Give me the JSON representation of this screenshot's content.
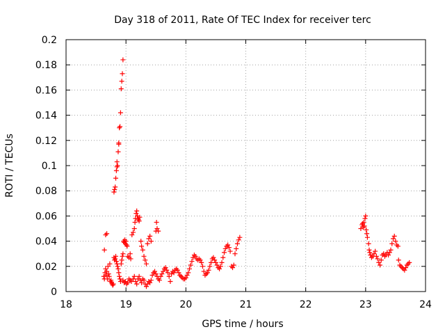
{
  "chart_data": {
    "type": "scatter",
    "title": "Day 318 of 2011, Rate Of TEC Index for receiver terc",
    "xlabel": "GPS time / hours",
    "ylabel": "ROTI / TECUs",
    "xlim": [
      18,
      24
    ],
    "ylim": [
      0,
      0.2
    ],
    "xticks": [
      18,
      19,
      20,
      21,
      22,
      23,
      24
    ],
    "xtick_labels": [
      "18",
      "19",
      "20",
      "21",
      "22",
      "23",
      "24"
    ],
    "yticks": [
      0,
      0.02,
      0.04,
      0.06,
      0.08,
      0.1,
      0.12,
      0.14,
      0.16,
      0.18,
      0.2
    ],
    "ytick_labels": [
      "0",
      "0.02",
      "0.04",
      "0.06",
      "0.08",
      "0.1",
      "0.12",
      "0.14",
      "0.16",
      "0.18",
      "0.2"
    ],
    "grid": true,
    "marker": "plus",
    "series": [
      {
        "name": "ROTI",
        "color": "#ff0000",
        "points": [
          [
            18.64,
            0.033
          ],
          [
            18.66,
            0.045
          ],
          [
            18.68,
            0.046
          ],
          [
            18.8,
            0.079
          ],
          [
            18.81,
            0.081
          ],
          [
            18.82,
            0.083
          ],
          [
            18.83,
            0.09
          ],
          [
            18.84,
            0.096
          ],
          [
            18.85,
            0.099
          ],
          [
            18.85,
            0.103
          ],
          [
            18.86,
            0.1
          ],
          [
            18.87,
            0.111
          ],
          [
            18.88,
            0.118
          ],
          [
            18.88,
            0.117
          ],
          [
            18.89,
            0.13
          ],
          [
            18.9,
            0.131
          ],
          [
            18.91,
            0.142
          ],
          [
            18.92,
            0.161
          ],
          [
            18.93,
            0.167
          ],
          [
            18.94,
            0.173
          ],
          [
            18.95,
            0.184
          ],
          [
            18.63,
            0.012
          ],
          [
            18.64,
            0.01
          ],
          [
            18.65,
            0.015
          ],
          [
            18.66,
            0.018
          ],
          [
            18.67,
            0.013
          ],
          [
            18.68,
            0.016
          ],
          [
            18.69,
            0.01
          ],
          [
            18.7,
            0.02
          ],
          [
            18.71,
            0.014
          ],
          [
            18.72,
            0.012
          ],
          [
            18.73,
            0.022
          ],
          [
            18.74,
            0.008
          ],
          [
            18.75,
            0.009
          ],
          [
            18.76,
            0.007
          ],
          [
            18.77,
            0.006
          ],
          [
            18.78,
            0.005
          ],
          [
            18.79,
            0.006
          ],
          [
            18.8,
            0.027
          ],
          [
            18.81,
            0.025
          ],
          [
            18.82,
            0.026
          ],
          [
            18.83,
            0.028
          ],
          [
            18.84,
            0.024
          ],
          [
            18.85,
            0.022
          ],
          [
            18.86,
            0.02
          ],
          [
            18.87,
            0.018
          ],
          [
            18.88,
            0.015
          ],
          [
            18.89,
            0.012
          ],
          [
            18.9,
            0.01
          ],
          [
            18.91,
            0.008
          ],
          [
            18.92,
            0.022
          ],
          [
            18.93,
            0.025
          ],
          [
            18.94,
            0.028
          ],
          [
            18.95,
            0.03
          ],
          [
            18.96,
            0.04
          ],
          [
            18.97,
            0.039
          ],
          [
            18.98,
            0.041
          ],
          [
            18.99,
            0.038
          ],
          [
            19.0,
            0.04
          ],
          [
            19.01,
            0.037
          ],
          [
            19.02,
            0.036
          ],
          [
            18.95,
            0.009
          ],
          [
            18.97,
            0.007
          ],
          [
            18.99,
            0.008
          ],
          [
            19.01,
            0.006
          ],
          [
            19.03,
            0.007
          ],
          [
            19.05,
            0.01
          ],
          [
            19.07,
            0.009
          ],
          [
            19.09,
            0.008
          ],
          [
            19.03,
            0.028
          ],
          [
            19.05,
            0.027
          ],
          [
            19.07,
            0.03
          ],
          [
            19.08,
            0.026
          ],
          [
            19.1,
            0.045
          ],
          [
            19.12,
            0.047
          ],
          [
            19.14,
            0.05
          ],
          [
            19.15,
            0.055
          ],
          [
            19.16,
            0.058
          ],
          [
            19.17,
            0.062
          ],
          [
            19.18,
            0.064
          ],
          [
            19.19,
            0.06
          ],
          [
            19.2,
            0.058
          ],
          [
            19.21,
            0.057
          ],
          [
            19.22,
            0.056
          ],
          [
            19.23,
            0.059
          ],
          [
            19.25,
            0.04
          ],
          [
            19.26,
            0.036
          ],
          [
            19.28,
            0.033
          ],
          [
            19.3,
            0.028
          ],
          [
            19.32,
            0.025
          ],
          [
            19.34,
            0.022
          ],
          [
            19.36,
            0.038
          ],
          [
            19.38,
            0.042
          ],
          [
            19.4,
            0.044
          ],
          [
            19.42,
            0.04
          ],
          [
            19.5,
            0.048
          ],
          [
            19.51,
            0.055
          ],
          [
            19.52,
            0.05
          ],
          [
            19.54,
            0.048
          ],
          [
            19.12,
            0.01
          ],
          [
            19.14,
            0.012
          ],
          [
            19.16,
            0.008
          ],
          [
            19.18,
            0.006
          ],
          [
            19.2,
            0.01
          ],
          [
            19.22,
            0.012
          ],
          [
            19.24,
            0.009
          ],
          [
            19.26,
            0.007
          ],
          [
            19.28,
            0.01
          ],
          [
            19.3,
            0.009
          ],
          [
            19.32,
            0.006
          ],
          [
            19.34,
            0.004
          ],
          [
            19.36,
            0.006
          ],
          [
            19.38,
            0.008
          ],
          [
            19.4,
            0.007
          ],
          [
            19.42,
            0.009
          ],
          [
            19.44,
            0.013
          ],
          [
            19.46,
            0.015
          ],
          [
            19.48,
            0.016
          ],
          [
            19.5,
            0.014
          ],
          [
            19.52,
            0.012
          ],
          [
            19.54,
            0.01
          ],
          [
            19.56,
            0.009
          ],
          [
            19.58,
            0.012
          ],
          [
            19.6,
            0.014
          ],
          [
            19.62,
            0.016
          ],
          [
            19.64,
            0.018
          ],
          [
            19.66,
            0.019
          ],
          [
            19.68,
            0.017
          ],
          [
            19.7,
            0.015
          ],
          [
            19.72,
            0.012
          ],
          [
            19.74,
            0.008
          ],
          [
            19.76,
            0.014
          ],
          [
            19.78,
            0.016
          ],
          [
            19.8,
            0.015
          ],
          [
            19.82,
            0.017
          ],
          [
            19.84,
            0.018
          ],
          [
            19.86,
            0.017
          ],
          [
            19.88,
            0.015
          ],
          [
            19.9,
            0.013
          ],
          [
            19.92,
            0.012
          ],
          [
            19.94,
            0.011
          ],
          [
            19.96,
            0.01
          ],
          [
            19.98,
            0.01
          ],
          [
            20.0,
            0.011
          ],
          [
            20.02,
            0.013
          ],
          [
            20.04,
            0.015
          ],
          [
            20.06,
            0.018
          ],
          [
            20.08,
            0.021
          ],
          [
            20.1,
            0.024
          ],
          [
            20.12,
            0.027
          ],
          [
            20.14,
            0.029
          ],
          [
            20.16,
            0.028
          ],
          [
            20.18,
            0.026
          ],
          [
            20.2,
            0.025
          ],
          [
            20.22,
            0.026
          ],
          [
            20.24,
            0.025
          ],
          [
            20.26,
            0.023
          ],
          [
            20.28,
            0.02
          ],
          [
            20.3,
            0.016
          ],
          [
            20.32,
            0.013
          ],
          [
            20.34,
            0.014
          ],
          [
            20.36,
            0.015
          ],
          [
            20.38,
            0.017
          ],
          [
            20.4,
            0.02
          ],
          [
            20.42,
            0.023
          ],
          [
            20.44,
            0.026
          ],
          [
            20.46,
            0.027
          ],
          [
            20.48,
            0.025
          ],
          [
            20.5,
            0.023
          ],
          [
            20.52,
            0.021
          ],
          [
            20.54,
            0.019
          ],
          [
            20.56,
            0.018
          ],
          [
            20.58,
            0.02
          ],
          [
            20.6,
            0.023
          ],
          [
            20.62,
            0.027
          ],
          [
            20.64,
            0.031
          ],
          [
            20.66,
            0.034
          ],
          [
            20.68,
            0.036
          ],
          [
            20.7,
            0.037
          ],
          [
            20.72,
            0.035
          ],
          [
            20.74,
            0.032
          ],
          [
            20.76,
            0.02
          ],
          [
            20.78,
            0.019
          ],
          [
            20.8,
            0.021
          ],
          [
            20.82,
            0.03
          ],
          [
            20.84,
            0.034
          ],
          [
            20.86,
            0.038
          ],
          [
            20.88,
            0.041
          ],
          [
            20.9,
            0.043
          ],
          [
            22.92,
            0.05
          ],
          [
            22.94,
            0.053
          ],
          [
            22.95,
            0.054
          ],
          [
            22.96,
            0.051
          ],
          [
            22.97,
            0.055
          ],
          [
            22.98,
            0.052
          ],
          [
            22.99,
            0.058
          ],
          [
            23.0,
            0.06
          ],
          [
            23.01,
            0.049
          ],
          [
            23.02,
            0.046
          ],
          [
            23.03,
            0.043
          ],
          [
            23.05,
            0.038
          ],
          [
            23.06,
            0.033
          ],
          [
            23.07,
            0.031
          ],
          [
            23.08,
            0.029
          ],
          [
            23.1,
            0.027
          ],
          [
            23.12,
            0.028
          ],
          [
            23.14,
            0.03
          ],
          [
            23.16,
            0.032
          ],
          [
            23.18,
            0.028
          ],
          [
            23.2,
            0.026
          ],
          [
            23.22,
            0.023
          ],
          [
            23.24,
            0.021
          ],
          [
            23.26,
            0.025
          ],
          [
            23.28,
            0.029
          ],
          [
            23.3,
            0.03
          ],
          [
            23.32,
            0.028
          ],
          [
            23.34,
            0.029
          ],
          [
            23.36,
            0.031
          ],
          [
            23.38,
            0.029
          ],
          [
            23.4,
            0.031
          ],
          [
            23.42,
            0.033
          ],
          [
            23.44,
            0.038
          ],
          [
            23.46,
            0.042
          ],
          [
            23.48,
            0.044
          ],
          [
            23.5,
            0.04
          ],
          [
            23.52,
            0.037
          ],
          [
            23.54,
            0.036
          ],
          [
            23.55,
            0.025
          ],
          [
            23.57,
            0.021
          ],
          [
            23.59,
            0.02
          ],
          [
            23.61,
            0.019
          ],
          [
            23.63,
            0.018
          ],
          [
            23.65,
            0.017
          ],
          [
            23.67,
            0.019
          ],
          [
            23.69,
            0.021
          ],
          [
            23.71,
            0.022
          ],
          [
            23.73,
            0.023
          ]
        ]
      }
    ]
  }
}
